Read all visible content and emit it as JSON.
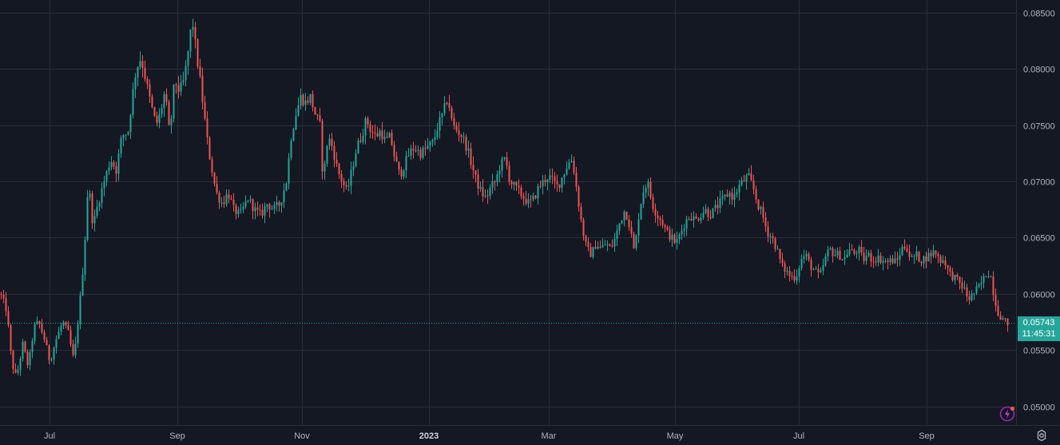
{
  "chart_data": {
    "type": "candlestick",
    "y_axis": {
      "ticks": [
        "0.08500",
        "0.08000",
        "0.07500",
        "0.07000",
        "0.06500",
        "0.06000",
        "0.05500",
        "0.05000"
      ],
      "range": [
        0.0488,
        0.086
      ]
    },
    "x_axis": {
      "labels": [
        "Jul",
        "Sep",
        "Nov",
        "2023",
        "Mar",
        "May",
        "Jul",
        "Sep"
      ],
      "bold_label": "2023"
    },
    "grid": true,
    "last_price": "0.05743",
    "countdown": "11:45:31",
    "close_path": [
      [
        0,
        0.06
      ],
      [
        8,
        0.0585
      ],
      [
        14,
        0.054
      ],
      [
        20,
        0.0525
      ],
      [
        28,
        0.0555
      ],
      [
        35,
        0.0535
      ],
      [
        42,
        0.057
      ],
      [
        48,
        0.0575
      ],
      [
        55,
        0.056
      ],
      [
        62,
        0.054
      ],
      [
        70,
        0.056
      ],
      [
        78,
        0.0575
      ],
      [
        85,
        0.0565
      ],
      [
        92,
        0.054
      ],
      [
        97,
        0.0575
      ],
      [
        102,
        0.061
      ],
      [
        106,
        0.065
      ],
      [
        110,
        0.07
      ],
      [
        116,
        0.066
      ],
      [
        122,
        0.068
      ],
      [
        130,
        0.07
      ],
      [
        138,
        0.072
      ],
      [
        145,
        0.071
      ],
      [
        152,
        0.074
      ],
      [
        160,
        0.0745
      ],
      [
        166,
        0.078
      ],
      [
        170,
        0.08
      ],
      [
        176,
        0.081
      ],
      [
        182,
        0.079
      ],
      [
        188,
        0.077
      ],
      [
        195,
        0.075
      ],
      [
        200,
        0.076
      ],
      [
        206,
        0.078
      ],
      [
        212,
        0.074
      ],
      [
        218,
        0.079
      ],
      [
        224,
        0.078
      ],
      [
        230,
        0.079
      ],
      [
        236,
        0.082
      ],
      [
        240,
        0.0845
      ],
      [
        246,
        0.081
      ],
      [
        250,
        0.079
      ],
      [
        255,
        0.076
      ],
      [
        260,
        0.073
      ],
      [
        265,
        0.071
      ],
      [
        270,
        0.069
      ],
      [
        278,
        0.068
      ],
      [
        285,
        0.069
      ],
      [
        292,
        0.0675
      ],
      [
        300,
        0.067
      ],
      [
        310,
        0.0685
      ],
      [
        318,
        0.0675
      ],
      [
        326,
        0.067
      ],
      [
        334,
        0.068
      ],
      [
        342,
        0.0675
      ],
      [
        350,
        0.068
      ],
      [
        358,
        0.07
      ],
      [
        364,
        0.074
      ],
      [
        370,
        0.076
      ],
      [
        376,
        0.0775
      ],
      [
        382,
        0.077
      ],
      [
        388,
        0.0775
      ],
      [
        394,
        0.076
      ],
      [
        400,
        0.075
      ],
      [
        404,
        0.07
      ],
      [
        410,
        0.074
      ],
      [
        416,
        0.073
      ],
      [
        422,
        0.071
      ],
      [
        428,
        0.07
      ],
      [
        434,
        0.069
      ],
      [
        440,
        0.071
      ],
      [
        446,
        0.073
      ],
      [
        452,
        0.074
      ],
      [
        458,
        0.0755
      ],
      [
        464,
        0.0745
      ],
      [
        470,
        0.074
      ],
      [
        476,
        0.0745
      ],
      [
        482,
        0.0735
      ],
      [
        488,
        0.074
      ],
      [
        494,
        0.072
      ],
      [
        500,
        0.0705
      ],
      [
        506,
        0.0715
      ],
      [
        512,
        0.0725
      ],
      [
        518,
        0.073
      ],
      [
        526,
        0.0725
      ],
      [
        534,
        0.073
      ],
      [
        542,
        0.0735
      ],
      [
        548,
        0.075
      ],
      [
        554,
        0.076
      ],
      [
        560,
        0.0775
      ],
      [
        566,
        0.075
      ],
      [
        572,
        0.0745
      ],
      [
        578,
        0.074
      ],
      [
        584,
        0.073
      ],
      [
        590,
        0.0715
      ],
      [
        596,
        0.07
      ],
      [
        602,
        0.069
      ],
      [
        608,
        0.0685
      ],
      [
        614,
        0.0695
      ],
      [
        620,
        0.07
      ],
      [
        626,
        0.0715
      ],
      [
        632,
        0.072
      ],
      [
        638,
        0.07
      ],
      [
        644,
        0.0695
      ],
      [
        650,
        0.069
      ],
      [
        656,
        0.0685
      ],
      [
        662,
        0.068
      ],
      [
        668,
        0.0685
      ],
      [
        674,
        0.0695
      ],
      [
        680,
        0.07
      ],
      [
        686,
        0.0705
      ],
      [
        692,
        0.07
      ],
      [
        698,
        0.0695
      ],
      [
        704,
        0.0705
      ],
      [
        710,
        0.0715
      ],
      [
        716,
        0.072
      ],
      [
        720,
        0.07
      ],
      [
        724,
        0.068
      ],
      [
        728,
        0.066
      ],
      [
        734,
        0.064
      ],
      [
        740,
        0.0635
      ],
      [
        746,
        0.0645
      ],
      [
        752,
        0.064
      ],
      [
        758,
        0.0645
      ],
      [
        764,
        0.064
      ],
      [
        770,
        0.065
      ],
      [
        776,
        0.0665
      ],
      [
        782,
        0.0675
      ],
      [
        788,
        0.066
      ],
      [
        794,
        0.0635
      ],
      [
        798,
        0.0665
      ],
      [
        804,
        0.069
      ],
      [
        810,
        0.07
      ],
      [
        816,
        0.068
      ],
      [
        822,
        0.067
      ],
      [
        828,
        0.0665
      ],
      [
        834,
        0.0655
      ],
      [
        840,
        0.065
      ],
      [
        846,
        0.0645
      ],
      [
        852,
        0.0655
      ],
      [
        858,
        0.0665
      ],
      [
        864,
        0.067
      ],
      [
        870,
        0.0665
      ],
      [
        876,
        0.067
      ],
      [
        882,
        0.0675
      ],
      [
        888,
        0.067
      ],
      [
        894,
        0.0675
      ],
      [
        900,
        0.068
      ],
      [
        906,
        0.0685
      ],
      [
        912,
        0.069
      ],
      [
        918,
        0.0685
      ],
      [
        924,
        0.0695
      ],
      [
        930,
        0.07
      ],
      [
        936,
        0.0705
      ],
      [
        942,
        0.0695
      ],
      [
        948,
        0.068
      ],
      [
        954,
        0.067
      ],
      [
        960,
        0.0655
      ],
      [
        966,
        0.065
      ],
      [
        972,
        0.064
      ],
      [
        978,
        0.0625
      ],
      [
        984,
        0.062
      ],
      [
        990,
        0.0615
      ],
      [
        996,
        0.0615
      ],
      [
        1002,
        0.063
      ],
      [
        1008,
        0.0635
      ],
      [
        1014,
        0.0625
      ],
      [
        1020,
        0.062
      ],
      [
        1026,
        0.0615
      ],
      [
        1032,
        0.063
      ],
      [
        1038,
        0.064
      ],
      [
        1044,
        0.0635
      ],
      [
        1050,
        0.0635
      ],
      [
        1056,
        0.063
      ],
      [
        1062,
        0.064
      ],
      [
        1068,
        0.0635
      ],
      [
        1074,
        0.064
      ],
      [
        1080,
        0.063
      ],
      [
        1086,
        0.0635
      ],
      [
        1092,
        0.063
      ],
      [
        1098,
        0.0632
      ],
      [
        1104,
        0.063
      ],
      [
        1110,
        0.0628
      ],
      [
        1116,
        0.063
      ],
      [
        1122,
        0.0628
      ],
      [
        1128,
        0.064
      ],
      [
        1134,
        0.0643
      ],
      [
        1140,
        0.063
      ],
      [
        1146,
        0.0635
      ],
      [
        1152,
        0.063
      ],
      [
        1158,
        0.0632
      ],
      [
        1164,
        0.0635
      ],
      [
        1170,
        0.0638
      ],
      [
        1176,
        0.063
      ],
      [
        1182,
        0.063
      ],
      [
        1188,
        0.0618
      ],
      [
        1194,
        0.0615
      ],
      [
        1200,
        0.061
      ],
      [
        1206,
        0.0605
      ],
      [
        1212,
        0.0595
      ],
      [
        1218,
        0.06
      ],
      [
        1224,
        0.0605
      ],
      [
        1230,
        0.0612
      ],
      [
        1236,
        0.062
      ],
      [
        1240,
        0.0615
      ],
      [
        1244,
        0.0598
      ],
      [
        1248,
        0.0585
      ],
      [
        1254,
        0.0578
      ],
      [
        1258,
        0.0575
      ],
      [
        1262,
        0.0574
      ]
    ],
    "colors": {
      "up": "#26a69a",
      "down": "#ef5350",
      "background": "#141823",
      "grid": "#2a2e39"
    }
  }
}
